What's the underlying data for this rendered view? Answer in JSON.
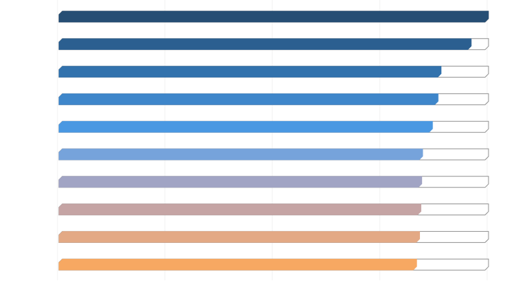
{
  "chart_data": {
    "type": "bar",
    "orientation": "horizontal",
    "style": "progress-bars",
    "categories": [
      "",
      "",
      "",
      "",
      "",
      "",
      "",
      "",
      "",
      ""
    ],
    "values": [
      100,
      96,
      89,
      88.3,
      87,
      84.7,
      84.5,
      84.3,
      84,
      83.3
    ],
    "xlim": [
      0,
      100
    ],
    "grid": true,
    "legend": "none",
    "colors": [
      "#264e74",
      "#2b5f90",
      "#3272ad",
      "#3e86ca",
      "#4a98e2",
      "#76a3db",
      "#a1a4c4",
      "#c5a4a4",
      "#e3a985",
      "#f7a862"
    ],
    "track_color": "#ffffff",
    "track_border": "#8f8f8f",
    "grid_color": "#f0f0f0"
  }
}
